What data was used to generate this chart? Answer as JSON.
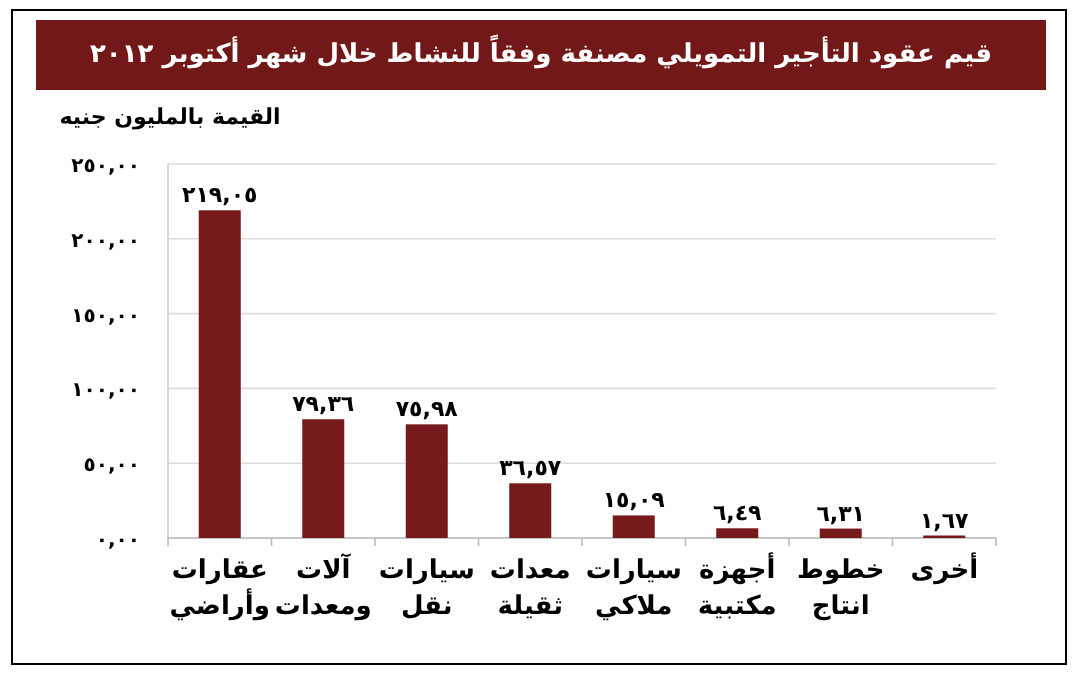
{
  "chart_data": {
    "type": "bar",
    "title": "قيم عقود التأجير التمويلي مصنفة وفقاً للنشاط خلال شهر أكتوبر ٢٠١٢",
    "ylabel": "القيمة بالمليون جنيه",
    "categories": [
      "عقارات وأراضي",
      "آلات ومعدات",
      "سيارات نقل",
      "معدات ثقيلة",
      "سيارات ملاكي",
      "أجهزة مكتبية",
      "خطوط انتاج",
      "أخرى"
    ],
    "values": [
      219.05,
      79.36,
      75.98,
      36.57,
      15.09,
      6.49,
      6.31,
      1.67
    ],
    "value_labels": [
      "٢١٩,٠٥",
      "٧٩,٣٦",
      "٧٥,٩٨",
      "٣٦,٥٧",
      "١٥,٠٩",
      "٦,٤٩",
      "٦,٣١",
      "١,٦٧"
    ],
    "color": "#761a1c",
    "ylim": [
      0,
      250
    ],
    "yticks": [
      {
        "value": 0,
        "label": "٠,٠٠"
      },
      {
        "value": 50,
        "label": "٥٠,٠٠"
      },
      {
        "value": 100,
        "label": "١٠٠,٠٠"
      },
      {
        "value": 150,
        "label": "١٥٠,٠٠"
      },
      {
        "value": 200,
        "label": "٢٠٠,٠٠"
      },
      {
        "value": 250,
        "label": "٢٥٠,٠٠"
      }
    ],
    "grid": "y"
  }
}
